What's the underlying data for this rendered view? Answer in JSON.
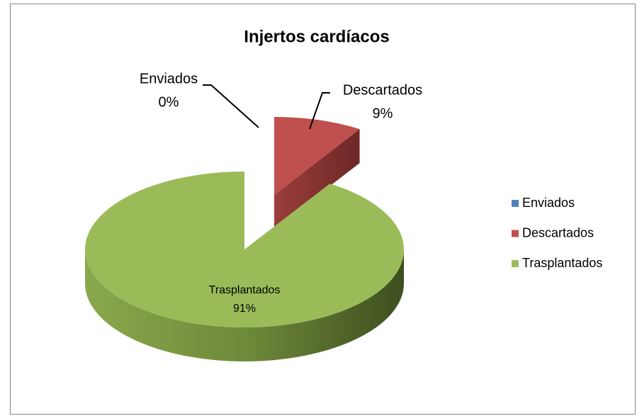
{
  "chart_data": {
    "type": "pie",
    "title": "Injertos cardíacos",
    "categories": [
      "Enviados",
      "Descartados",
      "Trasplantados"
    ],
    "values": [
      0,
      9,
      91
    ],
    "value_labels": [
      "0%",
      "9%",
      "91%"
    ],
    "colors": [
      "#4f81bd",
      "#c0504d",
      "#9bbb59"
    ],
    "legend": "right"
  }
}
